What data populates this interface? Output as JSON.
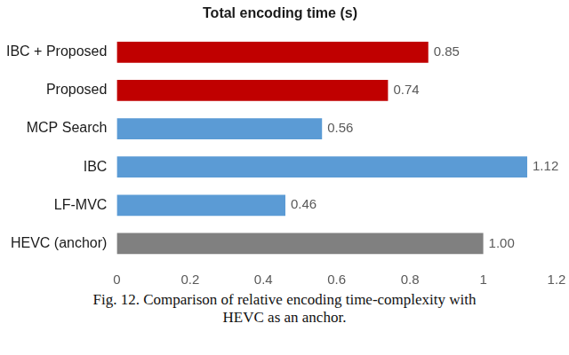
{
  "chart_data": {
    "type": "bar",
    "title": "Total encoding time (s)",
    "orientation": "horizontal",
    "categories": [
      "IBC + Proposed",
      "Proposed",
      "MCP Search",
      "IBC",
      "LF-MVC",
      "HEVC (anchor)"
    ],
    "values": [
      0.85,
      0.74,
      0.56,
      1.12,
      0.46,
      1.0
    ],
    "value_labels": [
      "0.85",
      "0.74",
      "0.56",
      "1.12",
      "0.46",
      "1.00"
    ],
    "colors": [
      "#c00000",
      "#c00000",
      "#5b9bd5",
      "#5b9bd5",
      "#5b9bd5",
      "#808080"
    ],
    "xlim": [
      0,
      1.2
    ],
    "xticks": [
      0,
      0.2,
      0.4,
      0.6,
      0.8,
      1,
      1.2
    ],
    "grid": false,
    "data_labels": true
  },
  "caption": "Fig. 12. Comparison of relative encoding time-complexity with HEVC as an anchor."
}
